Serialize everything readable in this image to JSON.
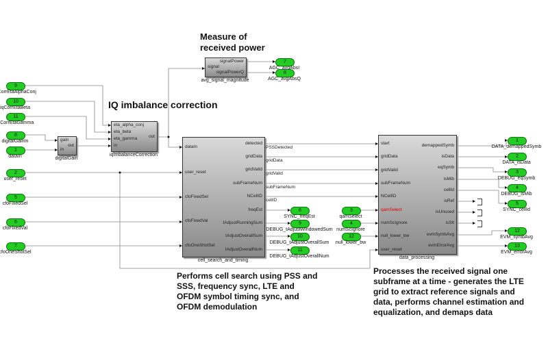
{
  "titles": {
    "iq": "IQ imbalance correction",
    "power": "Measure of received power"
  },
  "notes": {
    "cell_search": "Performs cell search using PSS and SSS, frequency sync, LTE and OFDM symbol timing sync, and OFDM demodulation",
    "data_processing": "Processes the received signal one subframe at a time - generates the LTE grid to extract reference signals and data, performs channel estimation and equalization, and demaps data"
  },
  "inports": [
    {
      "num": "9",
      "label": "iqCorrEtaAlphaConj"
    },
    {
      "num": "10",
      "label": "iqCorrEtaBeta"
    },
    {
      "num": "11",
      "label": "iqCorrEtaGamma"
    },
    {
      "num": "8",
      "label": "digitalGainIn"
    },
    {
      "num": "1",
      "label": "dataIn"
    },
    {
      "num": "2",
      "label": "user_reset"
    },
    {
      "num": "5",
      "label": "cfoFixedSel"
    },
    {
      "num": "6",
      "label": "cfoFixedVal"
    },
    {
      "num": "7",
      "label": "cfoOneShotSel"
    },
    {
      "num": "3",
      "label": "qamSelect"
    },
    {
      "num": "4",
      "label": "numScIgnore"
    },
    {
      "num": "12",
      "label": "null_lower_bw"
    }
  ],
  "outports": [
    {
      "num": "7",
      "label": "AGC_avgAbsI"
    },
    {
      "num": "8",
      "label": "AGC_avgAbsQ"
    },
    {
      "num": "6",
      "label": "SYNC_freqEst"
    },
    {
      "num": "9",
      "label": "DEBUG_tAdjustWindowedSum"
    },
    {
      "num": "10",
      "label": "DEBUG_tAdjustOverallSum"
    },
    {
      "num": "11",
      "label": "DEBUG_tAdjustOverallNum"
    },
    {
      "num": "1",
      "label": "DATA_demappedSymb"
    },
    {
      "num": "2",
      "label": "DATA_isData"
    },
    {
      "num": "3",
      "label": "DEBUG_eqSymb"
    },
    {
      "num": "4",
      "label": "DEBUG_isMib"
    },
    {
      "num": "5",
      "label": "SYNC_cellId"
    },
    {
      "num": "12",
      "label": "EVM_symbAvg"
    },
    {
      "num": "13",
      "label": "EVM_errorAvg"
    }
  ],
  "blocks": [
    {
      "name": "digitalGain",
      "inputs": [
        "gain",
        "in"
      ],
      "outputs": [
        "out"
      ]
    },
    {
      "name": "iqImbalanceCorrection",
      "inputs": [
        "eta_alpha_conj",
        "eta_beta",
        "eta_gamma",
        "in"
      ],
      "outputs": [
        "out"
      ]
    },
    {
      "name": "avg_signal_magnitude",
      "inputs": [
        "signal"
      ],
      "outputs": [
        "signalPower",
        "signalPowerQ"
      ]
    },
    {
      "name": "cell_search_and_timing",
      "inputs": [
        "dataIn",
        "user_reset",
        "cfoFixedSel",
        "cfoFixedVal",
        "cfoOneShotSel"
      ],
      "outputs": [
        "detected",
        "gridData",
        "gridValid",
        "subFrameNum",
        "NCellID",
        "freqEst",
        "tAdjustRunningSum",
        "tAdjustOverallSum",
        "tAdjustOverallNum"
      ]
    },
    {
      "name": "data_processing",
      "inputs": [
        "start",
        "gridData",
        "gridValid",
        "subFrameNum",
        "NCellID",
        "qamSelect",
        "numScIgnore",
        "null_lower_bw",
        "user_reset"
      ],
      "outputs": [
        "demappedSymb",
        "isData",
        "eqSymb",
        "isMib",
        "cellId",
        "isRef",
        "isUnused",
        "isSlt",
        "evmSymbAvg",
        "evmErrorAvg"
      ]
    }
  ],
  "signal_labels": [
    "PSSDetected",
    "gridData",
    "gridValid",
    "subFrameNum",
    "cellID"
  ],
  "colors": {
    "port": "#22cc22",
    "highlight_port": "#e00000"
  }
}
